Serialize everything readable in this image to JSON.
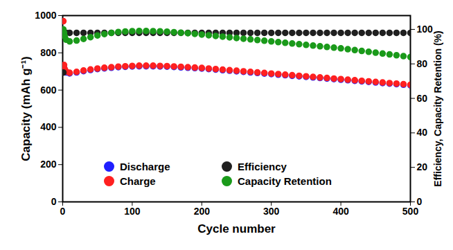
{
  "chart_data": {
    "type": "scatter",
    "marker": "circle",
    "xlabel": "Cycle number",
    "ylabel": "Capacity (mAh g⁻¹)",
    "y2label": "Efficiency, Capacity Retention (%)",
    "x": [
      1,
      2,
      3,
      5,
      10,
      20,
      30,
      40,
      50,
      60,
      70,
      80,
      90,
      100,
      110,
      120,
      130,
      140,
      150,
      160,
      170,
      180,
      190,
      200,
      210,
      220,
      230,
      240,
      250,
      260,
      270,
      280,
      290,
      300,
      310,
      320,
      330,
      340,
      350,
      360,
      370,
      380,
      390,
      400,
      410,
      420,
      430,
      440,
      450,
      460,
      470,
      480,
      490,
      500
    ],
    "xlim": [
      0,
      500
    ],
    "xticks": [
      0,
      100,
      200,
      300,
      400,
      500
    ],
    "ylim": [
      0,
      1000
    ],
    "yticks": [
      0,
      200,
      400,
      600,
      800,
      1000
    ],
    "y2lim": [
      0,
      108
    ],
    "y2ticks": [
      0,
      20,
      40,
      60,
      80,
      100
    ],
    "legend": "lower center",
    "series": [
      {
        "name": "Discharge",
        "color": "#1f1fff",
        "values": [
          730,
          720,
          705,
          695,
          690,
          695,
          702,
          708,
          713,
          717,
          720,
          723,
          725,
          727,
          728,
          728,
          728,
          727,
          726,
          724,
          722,
          720,
          718,
          716,
          713,
          710,
          707,
          704,
          701,
          698,
          695,
          692,
          689,
          686,
          683,
          680,
          677,
          674,
          671,
          668,
          665,
          662,
          659,
          656,
          653,
          650,
          647,
          644,
          641,
          638,
          635,
          632,
          629,
          626
        ]
      },
      {
        "name": "Charge",
        "color": "#ff2020",
        "values": [
          970,
          735,
          712,
          700,
          693,
          698,
          705,
          711,
          716,
          720,
          723,
          726,
          728,
          730,
          731,
          731,
          731,
          730,
          729,
          727,
          725,
          723,
          721,
          719,
          716,
          713,
          710,
          707,
          704,
          701,
          698,
          695,
          692,
          689,
          686,
          683,
          680,
          677,
          674,
          671,
          668,
          665,
          662,
          659,
          656,
          653,
          650,
          647,
          644,
          641,
          638,
          635,
          632,
          629
        ]
      },
      {
        "name": "Efficiency",
        "color": "#202020",
        "axis": "y2",
        "values": [
          75,
          98,
          98,
          98,
          98,
          98,
          98,
          98,
          98,
          98,
          98,
          98,
          98,
          98,
          98,
          98,
          98,
          98,
          98,
          98,
          98,
          98,
          98,
          98,
          98,
          98,
          98,
          98,
          98,
          98,
          98,
          98,
          98,
          98,
          98,
          98,
          98,
          98,
          98,
          98,
          98,
          98,
          98,
          98,
          98,
          98,
          98,
          98,
          98,
          98,
          98,
          98,
          98,
          98
        ]
      },
      {
        "name": "Capacity Retention",
        "color": "#1a9a1a",
        "axis": "y2",
        "values": [
          100,
          98,
          96,
          94,
          93,
          93.5,
          94.5,
          95.5,
          96.5,
          97.3,
          98,
          98.5,
          98.8,
          99,
          99.1,
          99.1,
          99,
          98.9,
          98.7,
          98.4,
          98.1,
          97.8,
          97.4,
          97,
          96.6,
          96.2,
          95.8,
          95.4,
          95,
          94.6,
          94.2,
          93.8,
          93.4,
          93,
          92.6,
          92.2,
          91.8,
          91.4,
          91,
          90.6,
          90.2,
          89.8,
          89.4,
          89,
          88.5,
          88,
          87.5,
          87,
          86.5,
          86,
          85.5,
          85,
          84.5,
          84
        ]
      }
    ]
  }
}
